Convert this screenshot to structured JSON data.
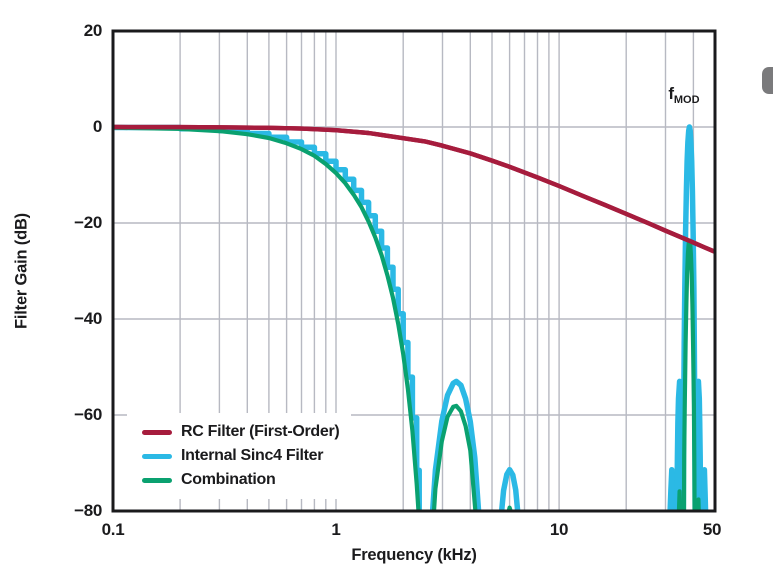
{
  "figure": {
    "background": "#ffffff",
    "frame_color": "#1a1a1c",
    "grid_color": "#b7b9c2",
    "x_axis": {
      "title": "Frequency (kHz)",
      "scale": "log",
      "min": 0.1,
      "max": 50,
      "tick_labels": [
        "0.1",
        "1",
        "10",
        "50"
      ],
      "minor_gridlines": [
        0.2,
        0.3,
        0.4,
        0.5,
        0.6,
        0.7,
        0.8,
        0.9,
        1,
        2,
        3,
        4,
        5,
        6,
        7,
        8,
        9,
        10,
        20,
        30,
        40
      ]
    },
    "y_axis": {
      "title": "Filter Gain (dB)",
      "min": -80,
      "max": 20,
      "tick_labels": [
        "20",
        "0",
        "−20",
        "−40",
        "−60",
        "−80"
      ],
      "gridlines": [
        0,
        -20,
        -40,
        -60
      ]
    },
    "legend": [
      {
        "label": "RC Filter (First-Order)",
        "color": "#a61c3d"
      },
      {
        "label": "Internal Sinc4 Filter",
        "color": "#2bb9e5"
      },
      {
        "label": "Combination",
        "color": "#0aa170"
      }
    ],
    "annotation": {
      "text_main": "f",
      "text_sub": "MOD",
      "at_frequency_khz": 38.4
    }
  },
  "chart_data": {
    "type": "line",
    "title": "",
    "xlabel": "Frequency (kHz)",
    "ylabel": "Filter Gain (dB)",
    "xlim": [
      0.1,
      50
    ],
    "ylim": [
      -80,
      20
    ],
    "x_scale": "log",
    "grid": true,
    "legend_position": "inside-bottom-left",
    "series": [
      {
        "name": "RC Filter (First-Order)",
        "color": "#a61c3d",
        "width": 4.4,
        "segments": [
          [
            [
              0.1,
              0
            ],
            [
              0.2,
              -0.03
            ],
            [
              0.3,
              -0.06
            ],
            [
              0.5,
              -0.17
            ],
            [
              0.7,
              -0.33
            ],
            [
              1.0,
              -0.67
            ],
            [
              1.4,
              -1.24
            ],
            [
              2.0,
              -2.33
            ],
            [
              2.5,
              -3.0
            ],
            [
              3.0,
              -3.9
            ],
            [
              4.0,
              -5.5
            ],
            [
              5.0,
              -7.0
            ],
            [
              6.0,
              -8.3
            ],
            [
              8.0,
              -10.5
            ],
            [
              10,
              -12.3
            ],
            [
              13,
              -14.5
            ],
            [
              16,
              -16.2
            ],
            [
              20,
              -18.1
            ],
            [
              25,
              -20.0
            ],
            [
              30,
              -21.6
            ],
            [
              38.4,
              -23.7
            ],
            [
              45,
              -25.1
            ],
            [
              50,
              -26.0
            ]
          ]
        ]
      },
      {
        "name": "Internal Sinc4 Filter",
        "color": "#2bb9e5",
        "width": 5.5,
        "stepped_segments": [
          0
        ],
        "segments": [
          [
            [
              0.1,
              -0.1
            ],
            [
              0.2,
              -0.35
            ],
            [
              0.3,
              -0.76
            ],
            [
              0.4,
              -1.36
            ],
            [
              0.5,
              -2.14
            ],
            [
              0.6,
              -3.12
            ],
            [
              0.7,
              -4.23
            ],
            [
              0.8,
              -5.59
            ],
            [
              0.9,
              -7.15
            ],
            [
              1.0,
              -8.91
            ],
            [
              1.1,
              -10.9
            ],
            [
              1.2,
              -13.2
            ],
            [
              1.3,
              -15.7
            ],
            [
              1.4,
              -18.5
            ],
            [
              1.5,
              -21.7
            ],
            [
              1.6,
              -25.2
            ],
            [
              1.7,
              -29.2
            ],
            [
              1.8,
              -33.8
            ],
            [
              1.9,
              -38.9
            ],
            [
              2.0,
              -44.9
            ],
            [
              2.1,
              -52.1
            ],
            [
              2.2,
              -60.6
            ],
            [
              2.3,
              -71.5
            ],
            [
              2.36,
              -81
            ]
          ],
          [
            [
              2.7,
              -81
            ],
            [
              2.79,
              -71.5
            ],
            [
              2.98,
              -61.3
            ],
            [
              3.16,
              -55.9
            ],
            [
              3.35,
              -53.4
            ],
            [
              3.46,
              -53.0
            ],
            [
              3.63,
              -53.8
            ],
            [
              3.81,
              -56.6
            ],
            [
              4.0,
              -61.4
            ],
            [
              4.19,
              -68.9
            ],
            [
              4.37,
              -81
            ]
          ],
          [
            [
              5.5,
              -81
            ],
            [
              5.64,
              -75.7
            ],
            [
              5.83,
              -72.4
            ],
            [
              6.0,
              -71.4
            ],
            [
              6.2,
              -72.5
            ],
            [
              6.39,
              -75.6
            ],
            [
              6.55,
              -81
            ]
          ],
          [
            [
              31.4,
              -81
            ],
            [
              31.7,
              -75.6
            ],
            [
              32.0,
              -71.4
            ],
            [
              32.3,
              -75.7
            ],
            [
              32.55,
              -81
            ]
          ],
          [
            [
              33.7,
              -81
            ],
            [
              33.9,
              -68.9
            ],
            [
              34.1,
              -61.4
            ],
            [
              34.3,
              -56.6
            ],
            [
              34.68,
              -53.0
            ],
            [
              35.0,
              -55.9
            ],
            [
              35.2,
              -61.3
            ],
            [
              35.4,
              -71.5
            ],
            [
              35.5,
              -81
            ]
          ],
          [
            [
              36.04,
              -81
            ],
            [
              36.1,
              -71.5
            ],
            [
              36.2,
              -60.6
            ],
            [
              36.4,
              -44.9
            ],
            [
              36.6,
              -33.8
            ],
            [
              36.9,
              -21.7
            ],
            [
              37.2,
              -13.2
            ],
            [
              37.5,
              -7.2
            ],
            [
              37.8,
              -3.1
            ],
            [
              38.1,
              -0.8
            ],
            [
              38.4,
              0
            ],
            [
              38.7,
              -0.8
            ],
            [
              39.0,
              -3.1
            ],
            [
              39.3,
              -7.2
            ],
            [
              39.6,
              -13.2
            ],
            [
              39.9,
              -21.7
            ],
            [
              40.2,
              -33.8
            ],
            [
              40.4,
              -44.9
            ],
            [
              40.6,
              -60.6
            ],
            [
              40.7,
              -71.5
            ],
            [
              40.76,
              -81
            ]
          ],
          [
            [
              41.3,
              -81
            ],
            [
              41.4,
              -71.5
            ],
            [
              41.6,
              -61.3
            ],
            [
              41.8,
              -55.9
            ],
            [
              42.12,
              -53.0
            ],
            [
              42.5,
              -56.6
            ],
            [
              42.7,
              -61.4
            ],
            [
              42.9,
              -68.9
            ],
            [
              43.1,
              -81
            ]
          ],
          [
            [
              44.25,
              -81
            ],
            [
              44.6,
              -75.6
            ],
            [
              44.8,
              -71.4
            ],
            [
              45.1,
              -75.7
            ],
            [
              45.4,
              -81
            ]
          ]
        ]
      },
      {
        "name": "Combination",
        "color": "#0aa170",
        "width": 4.2,
        "overlay_segments": [
          4
        ],
        "segments": [
          [
            [
              0.1,
              -0.15
            ],
            [
              0.2,
              -0.4
            ],
            [
              0.3,
              -0.85
            ],
            [
              0.4,
              -1.5
            ],
            [
              0.5,
              -2.3
            ],
            [
              0.6,
              -3.4
            ],
            [
              0.7,
              -4.6
            ],
            [
              0.8,
              -6.0
            ],
            [
              0.9,
              -7.7
            ],
            [
              1.0,
              -9.6
            ],
            [
              1.1,
              -11.7
            ],
            [
              1.2,
              -14.1
            ],
            [
              1.3,
              -16.7
            ],
            [
              1.4,
              -19.7
            ],
            [
              1.5,
              -23.0
            ],
            [
              1.6,
              -26.7
            ],
            [
              1.7,
              -30.9
            ],
            [
              1.8,
              -35.6
            ],
            [
              1.9,
              -41.0
            ],
            [
              2.0,
              -47.3
            ],
            [
              2.1,
              -54.6
            ],
            [
              2.2,
              -63.3
            ],
            [
              2.3,
              -74.4
            ],
            [
              2.35,
              -81
            ]
          ],
          [
            [
              2.74,
              -81
            ],
            [
              2.79,
              -75.4
            ],
            [
              2.98,
              -65.5
            ],
            [
              3.16,
              -60.4
            ],
            [
              3.35,
              -58.3
            ],
            [
              3.46,
              -58.1
            ],
            [
              3.63,
              -59.2
            ],
            [
              3.81,
              -62.3
            ],
            [
              4.0,
              -67.4
            ],
            [
              4.23,
              -81
            ]
          ],
          [
            [
              5.87,
              -81
            ],
            [
              6.0,
              -79.3
            ],
            [
              6.16,
              -81
            ]
          ],
          [
            [
              34.4,
              -81
            ],
            [
              34.68,
              -75.9
            ],
            [
              34.95,
              -81
            ]
          ],
          [
            [
              36.3,
              -81
            ],
            [
              36.4,
              -68.4
            ],
            [
              36.6,
              -57.2
            ],
            [
              36.9,
              -45.1
            ],
            [
              37.2,
              -36.6
            ],
            [
              37.5,
              -30.6
            ],
            [
              37.8,
              -26.5
            ],
            [
              38.1,
              -24.2
            ],
            [
              38.4,
              -23.7
            ],
            [
              38.7,
              -24.2
            ],
            [
              39.0,
              -26.5
            ],
            [
              39.3,
              -30.8
            ],
            [
              39.6,
              -37.0
            ],
            [
              39.9,
              -45.6
            ],
            [
              40.2,
              -57.8
            ],
            [
              40.4,
              -69.0
            ],
            [
              40.5,
              -81
            ]
          ],
          [
            [
              41.9,
              -81
            ],
            [
              42.12,
              -77.6
            ],
            [
              42.35,
              -81
            ]
          ]
        ]
      }
    ],
    "draw_order": [
      1,
      2,
      0
    ]
  }
}
